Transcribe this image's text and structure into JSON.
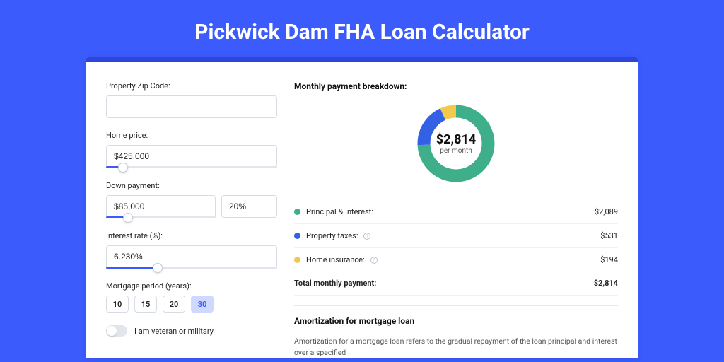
{
  "colors": {
    "page_bg": "#3b5bfd",
    "card_bg": "#ffffff",
    "accent": "#3b5bfd",
    "green": "#3fae8b",
    "blue": "#3460e6",
    "yellow": "#f3c94c",
    "border": "#d7dbe3"
  },
  "title": "Pickwick Dam FHA Loan Calculator",
  "form": {
    "zip_label": "Property Zip Code:",
    "zip_value": "",
    "home_price_label": "Home price:",
    "home_price_value": "$425,000",
    "home_price_slider_pct": 10,
    "down_payment_label": "Down payment:",
    "down_payment_value": "$85,000",
    "down_payment_pct": "20%",
    "down_payment_slider_pct": 20,
    "interest_label": "Interest rate (%):",
    "interest_value": "6.230%",
    "interest_slider_pct": 30,
    "period_label": "Mortgage period (years):",
    "period_options": [
      "10",
      "15",
      "20",
      "30"
    ],
    "period_selected": "30",
    "veteran_label": "I am veteran or military",
    "veteran_on": false
  },
  "breakdown": {
    "title": "Monthly payment breakdown:",
    "donut": {
      "amount": "$2,814",
      "sub": "per month",
      "slices": [
        {
          "color": "#3fae8b",
          "pct": 74.2
        },
        {
          "color": "#3460e6",
          "pct": 18.9
        },
        {
          "color": "#f3c94c",
          "pct": 6.9
        }
      ],
      "thickness": 18
    },
    "rows": [
      {
        "label": "Principal & Interest:",
        "value": "$2,089",
        "color": "#3fae8b",
        "info": false
      },
      {
        "label": "Property taxes:",
        "value": "$531",
        "color": "#3460e6",
        "info": true
      },
      {
        "label": "Home insurance:",
        "value": "$194",
        "color": "#f3c94c",
        "info": true
      }
    ],
    "total_label": "Total monthly payment:",
    "total_value": "$2,814"
  },
  "amortization": {
    "title": "Amortization for mortgage loan",
    "text": "Amortization for a mortgage loan refers to the gradual repayment of the loan principal and interest over a specified"
  }
}
